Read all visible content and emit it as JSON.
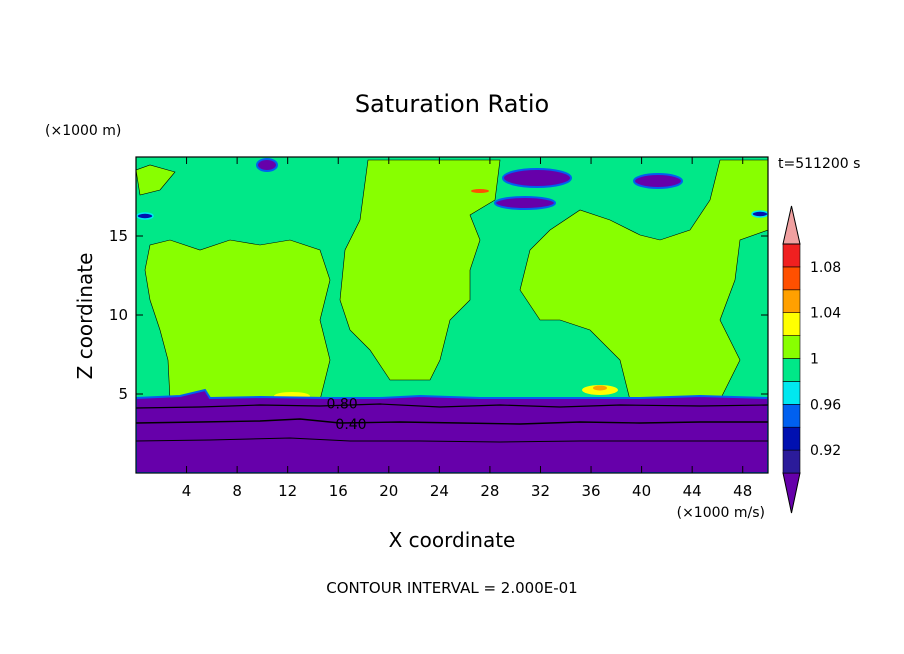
{
  "chart_data": {
    "type": "heatmap",
    "title": "Saturation Ratio",
    "xlabel": "X coordinate",
    "ylabel": "Z coordinate",
    "x_unit": "(×1000 m/s)",
    "y_unit": "(×1000 m)",
    "time_label": "t=511200 s",
    "footer": "CONTOUR INTERVAL = 2.000E-01",
    "xlim": [
      0,
      50
    ],
    "ylim": [
      0,
      20
    ],
    "x_ticks": [
      4,
      8,
      12,
      16,
      20,
      24,
      28,
      32,
      36,
      40,
      44,
      48
    ],
    "y_ticks": [
      5,
      10,
      15
    ],
    "contour_labels": [
      {
        "text": "0.80",
        "x": 16.5,
        "y": 4.4
      },
      {
        "text": "0.40",
        "x": 17.2,
        "y": 3.1
      }
    ],
    "colorbar": {
      "labels": [
        "1.08",
        "1.04",
        "1",
        "0.96",
        "0.92"
      ],
      "colors": [
        "#6600aa",
        "#2b1b9a",
        "#0010b0",
        "#0060f0",
        "#00e8f0",
        "#00e888",
        "#88ff00",
        "#ffff00",
        "#ffa000",
        "#ff5000",
        "#f02020",
        "#f0a0a0"
      ]
    },
    "regions": {
      "lower_dry_layer_top": 4.7,
      "saturated_column_ranges": [
        [
          17,
          28
        ],
        [
          31,
          40
        ]
      ],
      "upper_dry_patches": [
        [
          9.8,
          11.2
        ],
        [
          28.6,
          33
        ],
        [
          31,
          36
        ],
        [
          39,
          43
        ]
      ]
    }
  }
}
